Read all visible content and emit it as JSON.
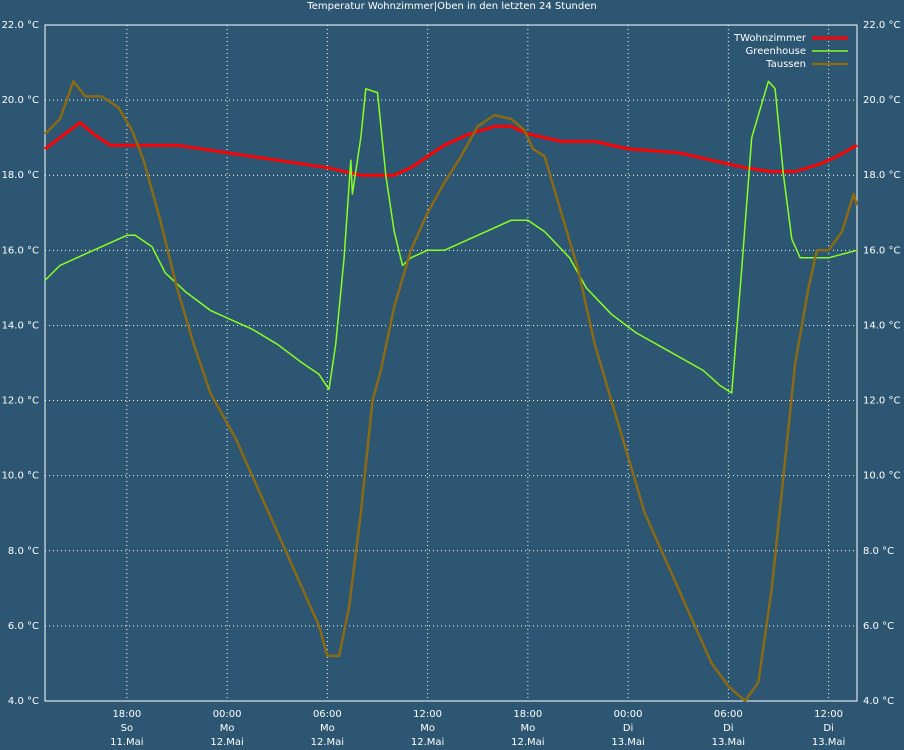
{
  "chart_data": {
    "type": "line",
    "title": "Temperatur Wohnzimmer|Oben in den letzten 24 Stunden",
    "xlim": [
      13.1,
      61.7
    ],
    "ylim": [
      4,
      22
    ],
    "grid": true,
    "legend": "top-right",
    "yticks": [
      {
        "value": 4,
        "label": "4.0 °C"
      },
      {
        "value": 6,
        "label": "6.0 °C"
      },
      {
        "value": 8,
        "label": "8.0 °C"
      },
      {
        "value": 10,
        "label": "10.0 °C"
      },
      {
        "value": 12,
        "label": "12.0 °C"
      },
      {
        "value": 14,
        "label": "14.0 °C"
      },
      {
        "value": 16,
        "label": "16.0 °C"
      },
      {
        "value": 18,
        "label": "18.0 °C"
      },
      {
        "value": 20,
        "label": "20.0 °C"
      },
      {
        "value": 22,
        "label": "22.0 °C"
      }
    ],
    "xticks": [
      {
        "value": 18,
        "label": "18:00\nSo\n11.Mai"
      },
      {
        "value": 24,
        "label": "00:00\nMo\n12.Mai"
      },
      {
        "value": 30,
        "label": "06:00\nMo\n12.Mai"
      },
      {
        "value": 36,
        "label": "12:00\nMo\n12.Mai"
      },
      {
        "value": 42,
        "label": "18:00\nMo\n12.Mai"
      },
      {
        "value": 48,
        "label": "00:00\nDi\n13.Mai"
      },
      {
        "value": 54,
        "label": "06:00\nDi\n13.Mai"
      },
      {
        "value": 60,
        "label": "12:00\nDi\n13.Mai"
      }
    ],
    "series": [
      {
        "name": "TWohnzimmer",
        "color": "#ff0000",
        "width": 3,
        "x": [
          13.1,
          14,
          15.2,
          16,
          17,
          18,
          21,
          24,
          27,
          30,
          32,
          34,
          35,
          36,
          37,
          38.5,
          40,
          41,
          42,
          44,
          46,
          48,
          51,
          53,
          55,
          56.5,
          58,
          59.5,
          60.5,
          61.7
        ],
        "values": [
          18.7,
          19.0,
          19.4,
          19.1,
          18.8,
          18.8,
          18.8,
          18.6,
          18.4,
          18.2,
          18.0,
          18.0,
          18.2,
          18.5,
          18.8,
          19.1,
          19.3,
          19.3,
          19.1,
          18.9,
          18.9,
          18.7,
          18.6,
          18.4,
          18.2,
          18.1,
          18.1,
          18.3,
          18.5,
          18.8
        ]
      },
      {
        "name": "Greenhouse",
        "color": "#88ff22",
        "width": 1.5,
        "x": [
          13.1,
          14,
          15.5,
          17,
          18,
          18.5,
          19.5,
          20.3,
          21.5,
          23,
          24,
          25.5,
          27,
          28.5,
          29.5,
          30.1,
          30.5,
          31,
          31.4,
          31.5,
          32,
          32.3,
          33,
          33.5,
          34,
          34.5,
          35,
          36,
          37,
          38,
          39,
          40,
          41,
          42,
          43,
          44.5,
          45.5,
          47,
          48.5,
          50.5,
          52.5,
          53.5,
          54.2,
          54.8,
          55.4,
          56.4,
          56.8,
          57.3,
          57.8,
          58.3,
          60,
          61.7
        ],
        "values": [
          15.2,
          15.6,
          15.9,
          16.2,
          16.4,
          16.4,
          16.1,
          15.4,
          14.9,
          14.4,
          14.2,
          13.9,
          13.5,
          13.0,
          12.7,
          12.3,
          13.5,
          15.8,
          18.4,
          17.5,
          19.0,
          20.3,
          20.2,
          18.0,
          16.5,
          15.6,
          15.8,
          16.0,
          16.0,
          16.2,
          16.4,
          16.6,
          16.8,
          16.8,
          16.5,
          15.8,
          15.0,
          14.3,
          13.8,
          13.3,
          12.8,
          12.4,
          12.2,
          15.5,
          19.0,
          20.5,
          20.3,
          18.0,
          16.3,
          15.8,
          15.8,
          16.0
        ]
      },
      {
        "name": "Taussen",
        "color": "#8a6a12",
        "width": 2.5,
        "x": [
          13.1,
          14,
          14.8,
          15.5,
          16.5,
          17.5,
          18.3,
          19,
          20,
          21,
          22,
          23,
          24.5,
          25.5,
          26.5,
          27.5,
          28.5,
          29.5,
          30,
          30.7,
          31.3,
          32,
          32.7,
          33.2,
          34,
          35,
          36,
          37,
          38,
          39,
          40,
          41,
          41.8,
          42.3,
          43,
          44,
          45,
          46,
          47,
          48,
          49,
          50.5,
          52,
          53,
          54,
          55,
          55.8,
          56.6,
          57.3,
          58,
          58.8,
          59.3,
          60,
          60.8,
          61.5,
          61.7
        ],
        "values": [
          19.1,
          19.5,
          20.5,
          20.1,
          20.1,
          19.8,
          19.2,
          18.4,
          16.8,
          15.0,
          13.5,
          12.2,
          11.0,
          10.0,
          9.0,
          8.0,
          7.0,
          6.0,
          5.2,
          5.2,
          6.5,
          9.0,
          12.0,
          12.8,
          14.5,
          16.0,
          17.0,
          17.8,
          18.5,
          19.3,
          19.6,
          19.5,
          19.2,
          18.7,
          18.5,
          17.0,
          15.5,
          13.5,
          12.0,
          10.5,
          9.0,
          7.5,
          6.0,
          5.0,
          4.4,
          4.0,
          4.5,
          7.0,
          10.0,
          13.0,
          15.0,
          16.0,
          16.0,
          16.5,
          17.5,
          17.2
        ]
      }
    ]
  }
}
